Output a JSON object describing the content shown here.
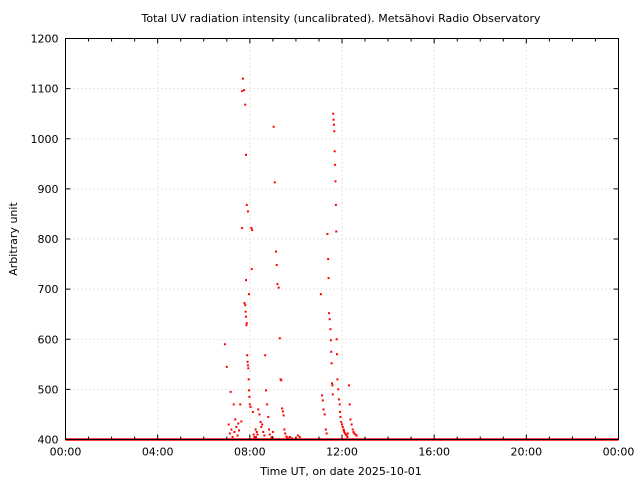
{
  "chart_data": {
    "type": "scatter",
    "title": "Total UV radiation intensity (uncalibrated). Metsähovi Radio Observatory",
    "xlabel": "Time UT, on date 2025-10-01",
    "ylabel": "Arbitrary unit",
    "xlim": [
      "00:00",
      "24:00"
    ],
    "ylim": [
      400,
      1200
    ],
    "x_tick_labels": [
      "00:00",
      "04:00",
      "08:00",
      "12:00",
      "16:00",
      "20:00",
      "00:00"
    ],
    "y_tick_labels": [
      "400",
      "500",
      "600",
      "700",
      "800",
      "900",
      "1000",
      "1100",
      "1200"
    ],
    "grid": true,
    "marker_color": "#ff0000",
    "baseline": {
      "value": 400,
      "from": "00:00",
      "to": "24:00"
    },
    "series": [
      {
        "x": [
          "06:55",
          "07:00",
          "07:05",
          "07:08",
          "07:10",
          "07:12",
          "07:15",
          "07:18",
          "07:20",
          "07:22",
          "07:25",
          "07:28",
          "07:30",
          "07:32",
          "07:35",
          "07:38",
          "07:40",
          "07:42",
          "07:45",
          "07:48",
          "07:50",
          "07:52",
          "07:55",
          "07:40",
          "07:50",
          "07:58",
          "07:46",
          "07:48",
          "07:49",
          "07:50",
          "07:51",
          "07:52",
          "07:53",
          "07:54",
          "07:55",
          "07:56",
          "07:57",
          "07:58",
          "07:59",
          "08:00",
          "08:02",
          "08:04",
          "08:05",
          "08:06",
          "08:08",
          "08:10",
          "08:12",
          "08:14",
          "08:15",
          "08:16",
          "08:18",
          "08:20",
          "08:22",
          "08:25",
          "08:28",
          "08:30",
          "08:32",
          "08:35",
          "08:38",
          "08:40",
          "08:42",
          "08:45",
          "08:48",
          "08:50",
          "08:52",
          "08:55",
          "08:58",
          "09:00",
          "09:02",
          "09:05",
          "09:08",
          "09:10",
          "09:12",
          "09:15",
          "09:18",
          "09:20",
          "09:22",
          "09:24",
          "09:26",
          "09:28",
          "09:30",
          "09:32",
          "09:35",
          "09:38",
          "09:40",
          "09:45",
          "09:50",
          "10:00",
          "10:05",
          "10:10",
          "11:05",
          "11:08",
          "11:10",
          "11:12",
          "11:15",
          "11:18",
          "11:20",
          "11:22",
          "11:24",
          "11:25",
          "11:26",
          "11:28",
          "11:30",
          "11:31",
          "11:32",
          "11:33",
          "11:34",
          "11:35",
          "11:36",
          "11:37",
          "11:38",
          "11:39",
          "11:40",
          "11:41",
          "11:42",
          "11:43",
          "11:44",
          "11:45",
          "11:46",
          "11:47",
          "11:48",
          "11:50",
          "11:52",
          "11:54",
          "11:55",
          "11:56",
          "11:58",
          "12:00",
          "12:02",
          "12:04",
          "12:05",
          "12:06",
          "12:08",
          "12:10",
          "12:12",
          "12:14",
          "12:15",
          "12:18",
          "12:20",
          "12:22",
          "12:25",
          "12:28",
          "12:30",
          "12:32",
          "12:35",
          "12:38"
        ],
        "y": [
          590,
          545,
          430,
          412,
          495,
          420,
          405,
          470,
          415,
          440,
          425,
          408,
          432,
          418,
          470,
          436,
          1095,
          1120,
          1097,
          1068,
          968,
          868,
          855,
          822,
          718,
          690,
          672,
          668,
          655,
          645,
          628,
          632,
          568,
          555,
          548,
          542,
          520,
          498,
          485,
          470,
          465,
          822,
          740,
          818,
          455,
          410,
          405,
          402,
          420,
          405,
          415,
          410,
          460,
          450,
          435,
          425,
          430,
          415,
          408,
          568,
          498,
          470,
          445,
          420,
          410,
          402,
          405,
          415,
          1024,
          913,
          775,
          748,
          710,
          703,
          602,
          520,
          518,
          462,
          456,
          448,
          420,
          412,
          406,
          404,
          402,
          405,
          402,
          402,
          408,
          405,
          690,
          488,
          478,
          460,
          450,
          420,
          412,
          810,
          760,
          722,
          652,
          640,
          620,
          598,
          575,
          552,
          512,
          508,
          490,
          1050,
          1038,
          1028,
          1015,
          975,
          948,
          915,
          868,
          815,
          600,
          570,
          520,
          500,
          480,
          470,
          455,
          445,
          435,
          430,
          425,
          420,
          418,
          415,
          412,
          410,
          408,
          405,
          412,
          508,
          470,
          440,
          430,
          420,
          415,
          412,
          410,
          408
        ]
      }
    ]
  }
}
